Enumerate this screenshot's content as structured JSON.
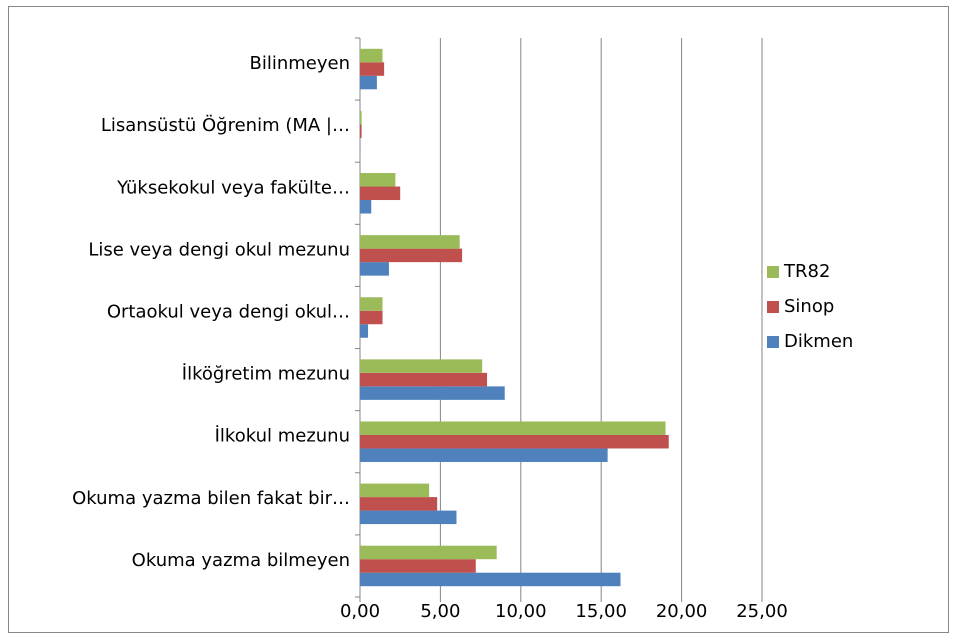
{
  "chart_data": {
    "type": "bar",
    "orientation": "horizontal",
    "categories": [
      "Okuma yazma bilmeyen",
      "Okuma yazma bilen fakat bir…",
      "İlkokul mezunu",
      "İlköğretim mezunu",
      "Ortaokul veya dengi okul…",
      "Lise veya dengi okul mezunu",
      "Yüksekokul veya fakülte…",
      "Lisansüstü Öğrenim (MA |…",
      "Bilinmeyen"
    ],
    "series": [
      {
        "name": "Dikmen",
        "color": "#4f81bd",
        "values": [
          16.2,
          6.0,
          15.4,
          9.0,
          0.5,
          1.8,
          0.7,
          0.02,
          1.05
        ]
      },
      {
        "name": "Sinop",
        "color": "#c0504d",
        "values": [
          7.2,
          4.8,
          19.2,
          7.9,
          1.4,
          6.35,
          2.5,
          0.1,
          1.5
        ]
      },
      {
        "name": "TR82",
        "color": "#9bbb59",
        "values": [
          8.5,
          4.3,
          19.0,
          7.6,
          1.4,
          6.2,
          2.2,
          0.1,
          1.4
        ]
      }
    ],
    "xlim": [
      0,
      25
    ],
    "xticks": [
      {
        "value": 0,
        "label": "0,00"
      },
      {
        "value": 5,
        "label": "5,00"
      },
      {
        "value": 10,
        "label": "10,00"
      },
      {
        "value": 15,
        "label": "15,00"
      },
      {
        "value": 20,
        "label": "20,00"
      },
      {
        "value": 25,
        "label": "25,00"
      }
    ],
    "grid": true,
    "legend": "right"
  }
}
